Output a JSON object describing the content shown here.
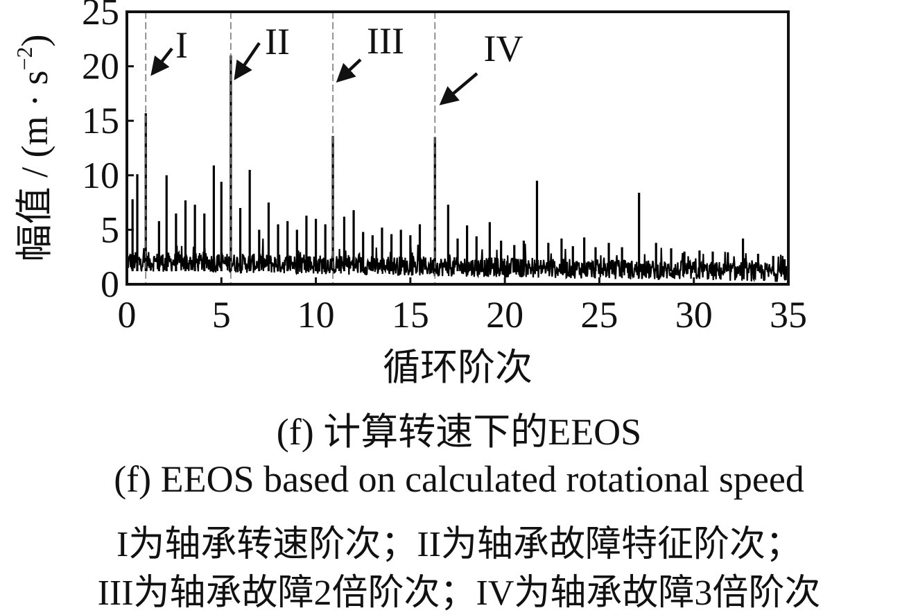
{
  "chart_data": {
    "type": "line",
    "xlabel": "循环阶次",
    "ylabel": "幅值 / (m · s",
    "ylabel_sup": "−2",
    "ylabel_close": ")",
    "xlim": [
      0,
      35
    ],
    "ylim": [
      0,
      25
    ],
    "xticks": [
      0,
      5,
      10,
      15,
      20,
      25,
      30,
      35
    ],
    "yticks": [
      0,
      5,
      10,
      15,
      20,
      25
    ],
    "grid": false,
    "line_color": "#000000",
    "marker_line_color": "#777777",
    "markers": [
      {
        "label": "I",
        "x": 1.0
      },
      {
        "label": "II",
        "x": 5.5
      },
      {
        "label": "III",
        "x": 10.9
      },
      {
        "label": "IV",
        "x": 16.3
      }
    ],
    "peaks": [
      {
        "x": 0.3,
        "y": 7.8
      },
      {
        "x": 0.55,
        "y": 10.1
      },
      {
        "x": 1.0,
        "y": 15.7
      },
      {
        "x": 1.7,
        "y": 5.8
      },
      {
        "x": 2.1,
        "y": 10.0
      },
      {
        "x": 2.6,
        "y": 6.5
      },
      {
        "x": 3.1,
        "y": 7.7
      },
      {
        "x": 3.6,
        "y": 7.3
      },
      {
        "x": 4.1,
        "y": 6.5
      },
      {
        "x": 4.6,
        "y": 10.9
      },
      {
        "x": 5.0,
        "y": 9.4
      },
      {
        "x": 5.5,
        "y": 21.0
      },
      {
        "x": 6.0,
        "y": 7.0
      },
      {
        "x": 6.5,
        "y": 10.5
      },
      {
        "x": 7.0,
        "y": 5.0
      },
      {
        "x": 7.5,
        "y": 7.5
      },
      {
        "x": 8.0,
        "y": 5.5
      },
      {
        "x": 8.5,
        "y": 5.8
      },
      {
        "x": 9.0,
        "y": 5.0
      },
      {
        "x": 9.5,
        "y": 6.3
      },
      {
        "x": 10.0,
        "y": 6.0
      },
      {
        "x": 10.5,
        "y": 5.5
      },
      {
        "x": 10.9,
        "y": 13.6
      },
      {
        "x": 11.5,
        "y": 6.2
      },
      {
        "x": 12.0,
        "y": 6.8
      },
      {
        "x": 12.5,
        "y": 4.8
      },
      {
        "x": 13.0,
        "y": 4.5
      },
      {
        "x": 13.5,
        "y": 5.2
      },
      {
        "x": 14.0,
        "y": 4.6
      },
      {
        "x": 14.5,
        "y": 5.0
      },
      {
        "x": 15.0,
        "y": 4.5
      },
      {
        "x": 15.5,
        "y": 5.5
      },
      {
        "x": 16.3,
        "y": 13.5
      },
      {
        "x": 17.0,
        "y": 7.3
      },
      {
        "x": 17.5,
        "y": 4.2
      },
      {
        "x": 18.0,
        "y": 5.4
      },
      {
        "x": 18.5,
        "y": 4.4
      },
      {
        "x": 19.2,
        "y": 5.7
      },
      {
        "x": 19.8,
        "y": 4.0
      },
      {
        "x": 20.5,
        "y": 3.6
      },
      {
        "x": 21.0,
        "y": 4.0
      },
      {
        "x": 21.7,
        "y": 9.5
      },
      {
        "x": 22.3,
        "y": 3.8
      },
      {
        "x": 23.0,
        "y": 4.2
      },
      {
        "x": 23.6,
        "y": 3.5
      },
      {
        "x": 24.2,
        "y": 4.3
      },
      {
        "x": 24.8,
        "y": 3.4
      },
      {
        "x": 25.5,
        "y": 3.8
      },
      {
        "x": 26.2,
        "y": 3.4
      },
      {
        "x": 27.1,
        "y": 8.4
      },
      {
        "x": 28.0,
        "y": 3.8
      },
      {
        "x": 28.8,
        "y": 3.3
      },
      {
        "x": 29.5,
        "y": 3.0
      },
      {
        "x": 30.3,
        "y": 3.1
      },
      {
        "x": 31.0,
        "y": 3.0
      },
      {
        "x": 31.8,
        "y": 2.9
      },
      {
        "x": 32.6,
        "y": 4.2
      },
      {
        "x": 33.4,
        "y": 2.8
      },
      {
        "x": 34.2,
        "y": 2.6
      },
      {
        "x": 34.8,
        "y": 2.3
      }
    ]
  },
  "caption_zh": "(f)  计算转速下的EEOS",
  "caption_en": "(f)  EEOS based on calculated rotational speed",
  "note_line1": "I为轴承转速阶次；II为轴承故障特征阶次；",
  "note_line2": "III为轴承故障2倍阶次；IV为轴承故障3倍阶次"
}
